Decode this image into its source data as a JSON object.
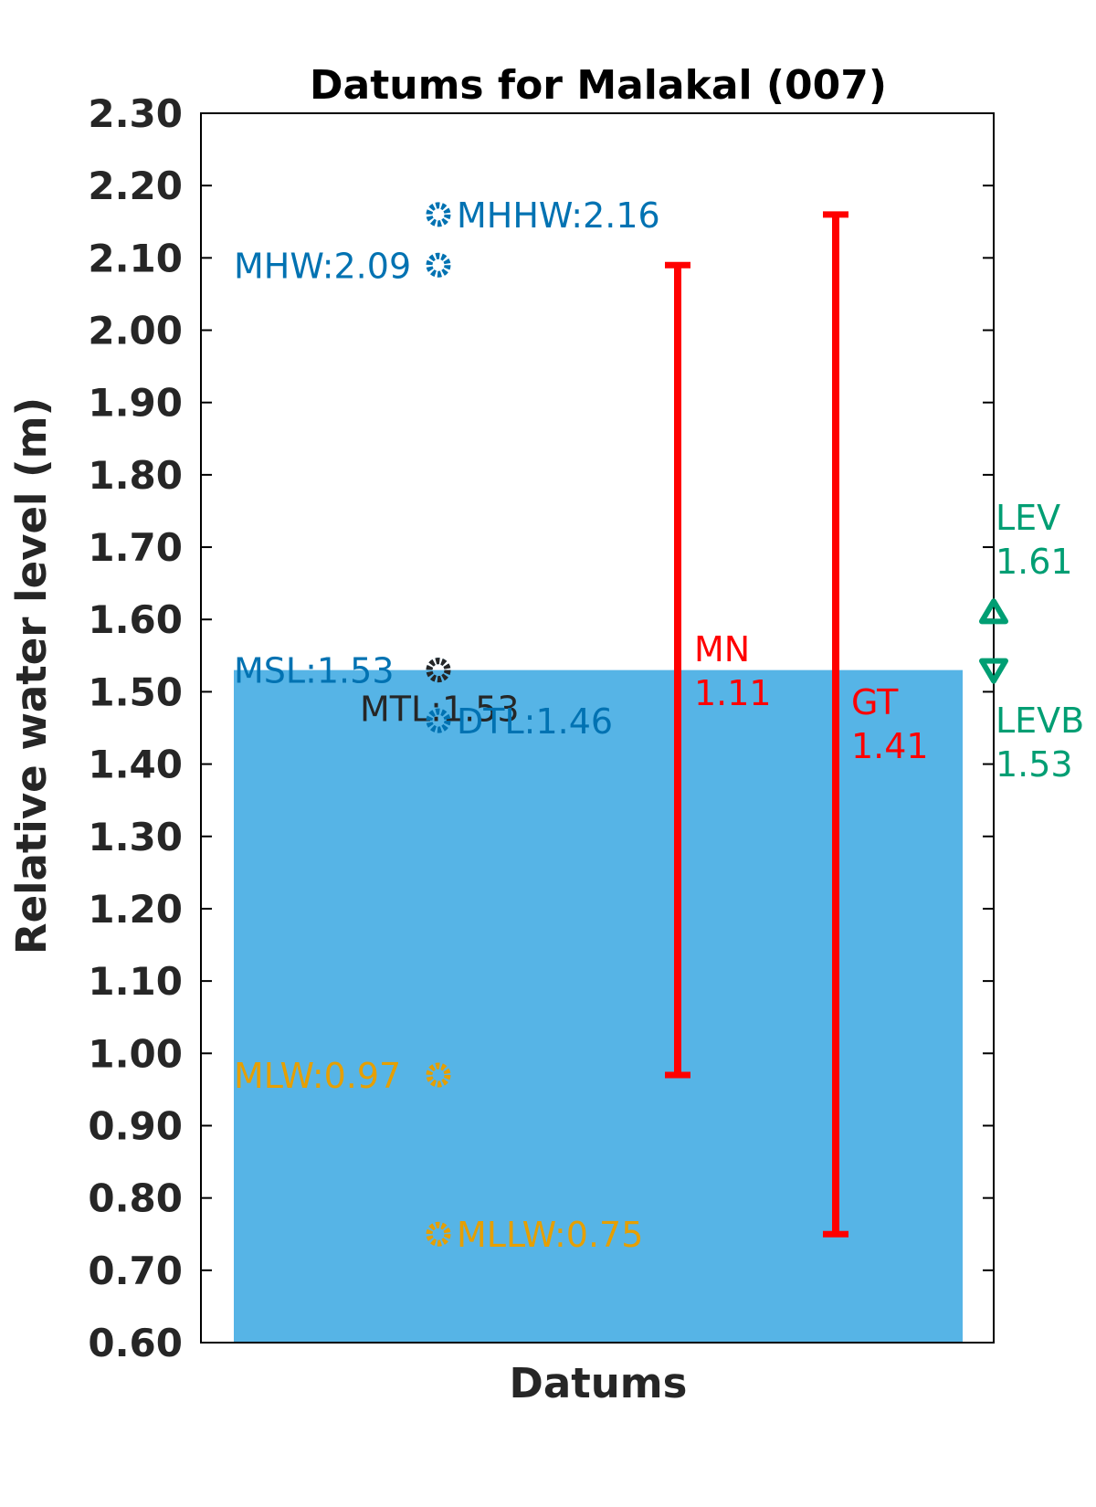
{
  "chart_data": {
    "type": "bar",
    "title": "Datums for Malakal (007)",
    "xlabel": "Datums",
    "ylabel": "Relative water level (m)",
    "ylim": [
      0.6,
      2.3
    ],
    "yticks": [
      "0.60",
      "0.70",
      "0.80",
      "0.90",
      "1.00",
      "1.10",
      "1.20",
      "1.30",
      "1.40",
      "1.50",
      "1.60",
      "1.70",
      "1.80",
      "1.90",
      "2.00",
      "2.10",
      "2.20",
      "2.30"
    ],
    "bar": {
      "value": 1.53,
      "color": "#56B4E6"
    },
    "datum_points": [
      {
        "name": "MHHW",
        "value": 2.16,
        "text": "MHHW:2.16",
        "color": "#0072B2",
        "label_side": "right"
      },
      {
        "name": "MHW",
        "value": 2.09,
        "text": "MHW:2.09",
        "color": "#0072B2",
        "label_side": "left"
      },
      {
        "name": "MSL",
        "value": 1.53,
        "text": "MSL:1.53",
        "color": "#0072B2",
        "label_side": "left"
      },
      {
        "name": "MTL",
        "value": 1.53,
        "text": "MTL:1.53",
        "color": "#262626",
        "label_side": "left-low"
      },
      {
        "name": "DTL",
        "value": 1.46,
        "text": "DTL:1.46",
        "color": "#0072B2",
        "label_side": "right"
      },
      {
        "name": "MLW",
        "value": 0.97,
        "text": "MLW:0.97",
        "color": "#E69F00",
        "label_side": "left"
      },
      {
        "name": "MLLW",
        "value": 0.75,
        "text": "MLLW:0.75",
        "color": "#E69F00",
        "label_side": "right"
      }
    ],
    "ranges": [
      {
        "name": "MN",
        "low": 0.97,
        "high": 2.09,
        "label": "MN",
        "value_text": "1.11",
        "color": "#FF0000"
      },
      {
        "name": "GT",
        "low": 0.75,
        "high": 2.16,
        "label": "GT",
        "value_text": "1.41",
        "color": "#FF0000"
      }
    ],
    "extremes": [
      {
        "name": "LEV",
        "value": 1.61,
        "label": "LEV",
        "value_text": "1.61",
        "marker": "triangle-up",
        "color": "#009E73"
      },
      {
        "name": "LEVB",
        "value": 1.53,
        "label": "LEVB",
        "value_text": "1.53",
        "marker": "triangle-down",
        "color": "#009E73"
      }
    ]
  }
}
